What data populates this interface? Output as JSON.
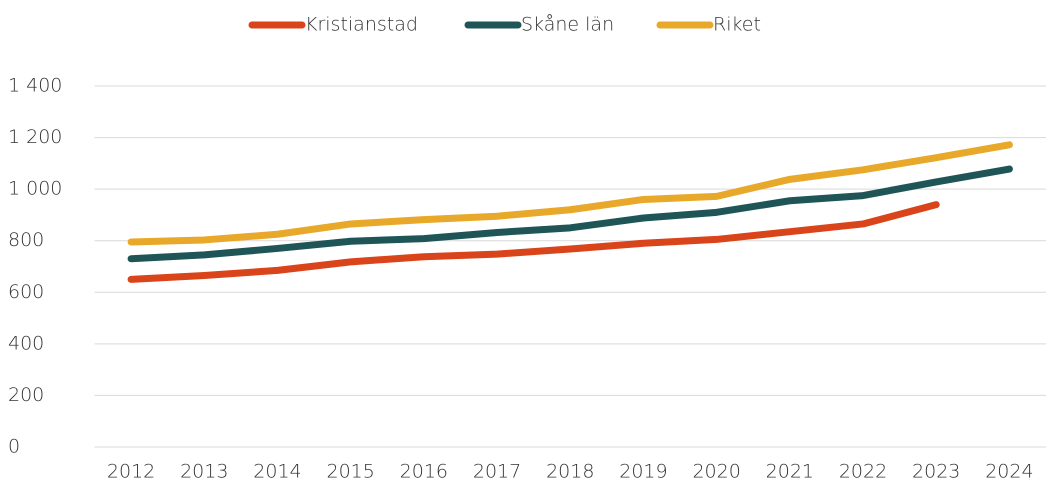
{
  "chart_data": {
    "type": "line",
    "categories": [
      "2012",
      "2013",
      "2014",
      "2015",
      "2016",
      "2017",
      "2018",
      "2019",
      "2020",
      "2021",
      "2022",
      "2023",
      "2024"
    ],
    "series": [
      {
        "name": "Kristianstad",
        "color": "#d9441a",
        "values": [
          650,
          665,
          685,
          718,
          738,
          748,
          768,
          790,
          805,
          835,
          865,
          940,
          null
        ]
      },
      {
        "name": "Skåne län",
        "color": "#1f5557",
        "values": [
          730,
          745,
          770,
          798,
          808,
          832,
          850,
          888,
          910,
          955,
          975,
          1028,
          1078
        ]
      },
      {
        "name": "Riket",
        "color": "#e8a82a",
        "values": [
          795,
          803,
          825,
          865,
          882,
          895,
          920,
          960,
          972,
          1038,
          1075,
          1122,
          1172
        ]
      }
    ],
    "ylim": [
      0,
      1400
    ],
    "yticks": [
      0,
      200,
      400,
      600,
      800,
      {
        "value": 1000,
        "label": "1 000"
      },
      {
        "value": 1200,
        "label": "1 200"
      },
      {
        "value": 1400,
        "label": "1 400"
      }
    ],
    "grid": true,
    "legend": "top"
  }
}
